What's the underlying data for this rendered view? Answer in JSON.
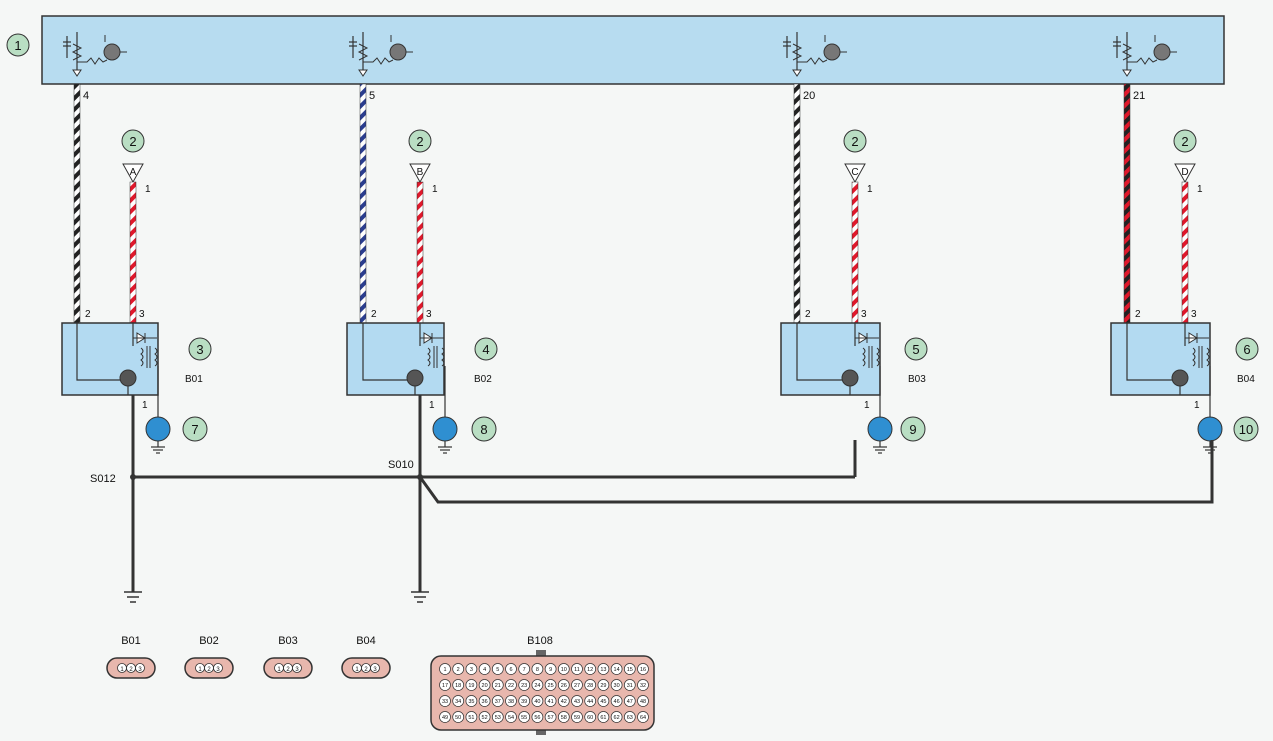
{
  "callouts": {
    "ecu": "1",
    "supply": "2",
    "ign1": "3",
    "ign2": "4",
    "ign3": "5",
    "ign4": "6",
    "plug1": "7",
    "plug2": "8",
    "plug3": "9",
    "plug4": "10"
  },
  "ecu_pins": [
    "4",
    "5",
    "20",
    "21"
  ],
  "supply_terminals": [
    "A",
    "B",
    "C",
    "D"
  ],
  "supply_pin": "1",
  "module_pins": {
    "control": "2",
    "supply": "3",
    "output": "1"
  },
  "modules": [
    "B01",
    "B02",
    "B03",
    "B04"
  ],
  "splices": {
    "left": "S012",
    "right": "S010"
  },
  "connectors": {
    "small": [
      "B01",
      "B02",
      "B03",
      "B04"
    ],
    "small_pins": [
      "1",
      "2",
      "3"
    ],
    "ecu": "B108",
    "ecu_pin_count": 64
  },
  "colors": {
    "ecu_fill": "#b7dcf0",
    "module_fill": "#b3daf1",
    "callout_fill": "#b9dec3",
    "plug_fill": "#2f8fd1",
    "connector_fill": "#e8b7ad",
    "wire_ground": "#333333",
    "stripe_red": "#e0182b",
    "stripe_black": "#222222",
    "stripe_blue": "#2a3d8f"
  }
}
